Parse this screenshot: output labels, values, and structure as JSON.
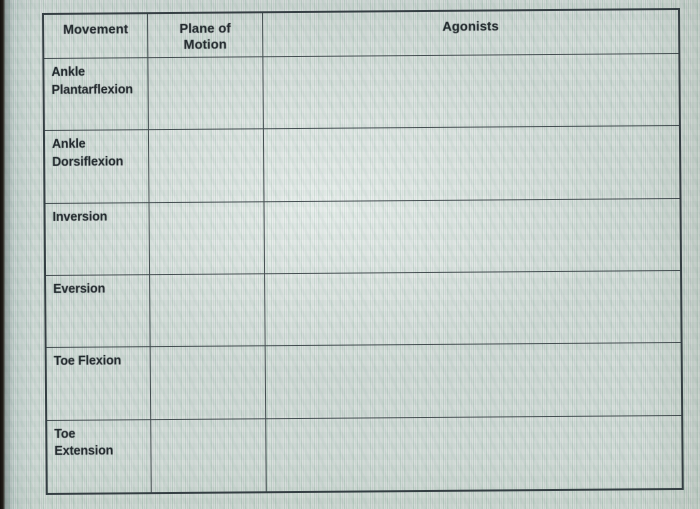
{
  "colors": {
    "paper": "#c9d4cf",
    "ink": "#232a2e",
    "grid_line": "#2a3438",
    "left_film_strip": "#14110e"
  },
  "table": {
    "headers": [
      {
        "label": "Movement"
      },
      {
        "label": "Plane of Motion"
      },
      {
        "label": "Agonists"
      }
    ],
    "rows": [
      {
        "movement": "Ankle Plantarflexion",
        "plane": "",
        "agonists": ""
      },
      {
        "movement": "Ankle Dorsiflexion",
        "plane": "",
        "agonists": ""
      },
      {
        "movement": "Inversion",
        "plane": "",
        "agonists": ""
      },
      {
        "movement": "Eversion",
        "plane": "",
        "agonists": ""
      },
      {
        "movement": "Toe Flexion",
        "plane": "",
        "agonists": ""
      },
      {
        "movement": "Toe Extension",
        "plane": "",
        "agonists": ""
      }
    ]
  }
}
